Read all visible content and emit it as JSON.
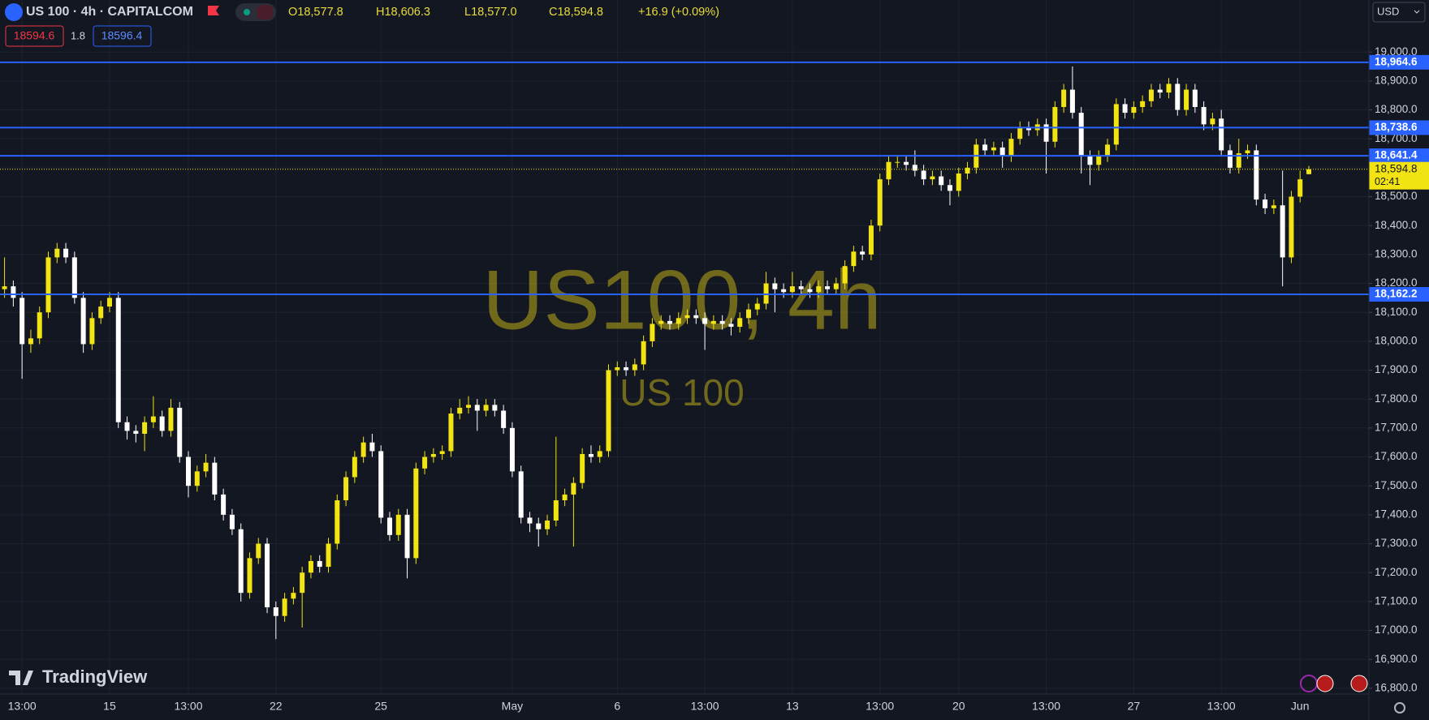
{
  "chart_data": {
    "type": "candlestick",
    "title": "US 100 · 4h · CAPITALCOM",
    "ohlc_legend": [
      "O18,577.8",
      "H18,606.3",
      "L18,577.0",
      "C18,594.8",
      "+16.9 (+0.09%)"
    ],
    "sell_price": 18594.6,
    "spread": 1.8,
    "buy_price": 18596.4,
    "watermark": "US100, 4h",
    "watermark_subtitle": "US 100",
    "brand": "TradingView",
    "currency": "USD",
    "up_color": "#f2e313",
    "down_color": "#ffffff",
    "grid": true,
    "categories": [
      null,
      null,
      "13:00",
      null,
      null,
      null,
      null,
      null,
      null,
      null,
      null,
      null,
      "15",
      null,
      null,
      null,
      null,
      null,
      null,
      null,
      null,
      "13:00",
      null,
      null,
      null,
      null,
      null,
      null,
      null,
      null,
      null,
      "22",
      null,
      null,
      null,
      null,
      null,
      null,
      null,
      null,
      null,
      null,
      null,
      "25",
      null,
      null,
      null,
      null,
      null,
      null,
      null,
      null,
      null,
      null,
      null,
      null,
      null,
      null,
      "May",
      null,
      null,
      null,
      null,
      null,
      null,
      null,
      null,
      null,
      null,
      null,
      "6",
      null,
      null,
      null,
      null,
      null,
      null,
      null,
      null,
      null,
      "13:00",
      null,
      null,
      null,
      null,
      null,
      null,
      null,
      null,
      null,
      "13",
      null,
      null,
      null,
      null,
      null,
      null,
      null,
      null,
      null,
      "13:00",
      null,
      null,
      null,
      null,
      null,
      null,
      null,
      null,
      "20",
      null,
      null,
      null,
      null,
      null,
      null,
      null,
      null,
      null,
      "13:00",
      null,
      null,
      null,
      null,
      null,
      null,
      null,
      null,
      null,
      "27",
      null,
      null,
      null,
      null,
      null,
      null,
      null,
      null,
      null,
      "13:00",
      null,
      null,
      null,
      null,
      null,
      null,
      null,
      null,
      "Jun",
      null
    ],
    "open": [
      18180,
      18190,
      18150,
      17990,
      18010,
      18100,
      18290,
      18320,
      18290,
      18150,
      17990,
      18080,
      18120,
      18150,
      17720,
      17690,
      17680,
      17720,
      17740,
      17690,
      17770,
      17600,
      17500,
      17550,
      17580,
      17470,
      17400,
      17350,
      17130,
      17250,
      17300,
      17080,
      17050,
      17110,
      17130,
      17200,
      17240,
      17220,
      17300,
      17450,
      17530,
      17600,
      17650,
      17620,
      17390,
      17330,
      17400,
      17250,
      17560,
      17600,
      17610,
      17620,
      17750,
      17770,
      17780,
      17760,
      17780,
      17760,
      17700,
      17550,
      17390,
      17370,
      17350,
      17380,
      17450,
      17470,
      17510,
      17610,
      17600,
      17620,
      17900,
      17910,
      17900,
      17920,
      18000,
      18060,
      18070,
      18060,
      18080,
      18090,
      18080,
      18060,
      18070,
      18060,
      18050,
      18080,
      18110,
      18130,
      18200,
      18180,
      18170,
      18190,
      18180,
      18170,
      18190,
      18180,
      18200,
      18260,
      18310,
      18300,
      18400,
      18560,
      18620,
      18620,
      18610,
      18590,
      18560,
      18570,
      18540,
      18520,
      18580,
      18600,
      18680,
      18660,
      18670,
      18640,
      18700,
      18740,
      18730,
      18750,
      18690,
      18810,
      18870,
      18790,
      18640,
      18610,
      18640,
      18680,
      18820,
      18790,
      18810,
      18830,
      18870,
      18860,
      18890,
      18800,
      18870,
      18810,
      18750,
      18770,
      18660,
      18600,
      18650,
      18660,
      18490,
      18460,
      18470,
      18290,
      18500,
      18577.8
    ],
    "high": [
      18290,
      18210,
      18170,
      18040,
      18120,
      18310,
      18340,
      18340,
      18310,
      18170,
      18100,
      18140,
      18170,
      18170,
      17740,
      17710,
      17740,
      17810,
      17760,
      17800,
      17790,
      17620,
      17570,
      17610,
      17600,
      17490,
      17420,
      17370,
      17270,
      17320,
      17320,
      17100,
      17130,
      17150,
      17220,
      17260,
      17260,
      17320,
      17470,
      17550,
      17620,
      17670,
      17680,
      17640,
      17410,
      17420,
      17420,
      17580,
      17620,
      17630,
      17640,
      17770,
      17800,
      17810,
      17800,
      17800,
      17800,
      17780,
      17720,
      17570,
      17410,
      17390,
      17400,
      17670,
      17490,
      17530,
      17630,
      17640,
      17640,
      17920,
      17930,
      17930,
      17940,
      18020,
      18080,
      18090,
      18090,
      18100,
      18110,
      18110,
      18100,
      18090,
      18090,
      18080,
      18100,
      18130,
      18150,
      18240,
      18220,
      18200,
      18240,
      18210,
      18200,
      18210,
      18210,
      18220,
      18280,
      18330,
      18330,
      18420,
      18580,
      18640,
      18640,
      18640,
      18660,
      18610,
      18590,
      18590,
      18560,
      18600,
      18620,
      18700,
      18700,
      18690,
      18690,
      18720,
      18760,
      18760,
      18770,
      18770,
      18830,
      18890,
      18950,
      18810,
      18660,
      18660,
      18700,
      18840,
      18840,
      18830,
      18850,
      18890,
      18890,
      18910,
      18910,
      18890,
      18890,
      18830,
      18790,
      18800,
      18680,
      18700,
      18680,
      18680,
      18510,
      18490,
      18590,
      18520,
      18590,
      18606.3
    ],
    "low": [
      18150,
      18120,
      17870,
      17960,
      17990,
      18080,
      18270,
      18270,
      18130,
      17960,
      17970,
      18060,
      18100,
      17700,
      17660,
      17650,
      17620,
      17700,
      17670,
      17670,
      17580,
      17460,
      17480,
      17530,
      17450,
      17380,
      17330,
      17100,
      17110,
      17230,
      17060,
      16970,
      17030,
      17090,
      17010,
      17180,
      17200,
      17200,
      17280,
      17430,
      17510,
      17580,
      17600,
      17370,
      17310,
      17310,
      17180,
      17230,
      17540,
      17580,
      17590,
      17600,
      17730,
      17750,
      17690,
      17740,
      17740,
      17680,
      17530,
      17370,
      17340,
      17290,
      17330,
      17360,
      17430,
      17290,
      17490,
      17580,
      17580,
      17600,
      17880,
      17880,
      17880,
      17900,
      17980,
      18040,
      18040,
      18040,
      18060,
      18060,
      17970,
      18040,
      18040,
      18020,
      18030,
      18060,
      18090,
      18110,
      18100,
      18150,
      18150,
      18160,
      18150,
      18150,
      18160,
      18160,
      18180,
      18240,
      18280,
      18280,
      18380,
      18540,
      18600,
      18590,
      18570,
      18540,
      18540,
      18520,
      18470,
      18500,
      18560,
      18580,
      18640,
      18640,
      18600,
      18620,
      18680,
      18710,
      18710,
      18580,
      18670,
      18790,
      18770,
      18580,
      18540,
      18590,
      18620,
      18660,
      18770,
      18770,
      18790,
      18810,
      18840,
      18840,
      18780,
      18780,
      18790,
      18730,
      18730,
      18640,
      18580,
      18580,
      18630,
      18470,
      18440,
      18440,
      18190,
      18270,
      18480,
      18577.0
    ],
    "close": [
      18190,
      18150,
      17990,
      18010,
      18100,
      18290,
      18320,
      18290,
      18150,
      17990,
      18080,
      18120,
      18150,
      17720,
      17690,
      17680,
      17720,
      17740,
      17690,
      17770,
      17600,
      17500,
      17550,
      17580,
      17470,
      17400,
      17350,
      17130,
      17250,
      17300,
      17080,
      17050,
      17110,
      17130,
      17200,
      17240,
      17220,
      17300,
      17450,
      17530,
      17600,
      17650,
      17620,
      17390,
      17330,
      17400,
      17250,
      17560,
      17600,
      17610,
      17620,
      17750,
      17770,
      17780,
      17760,
      17780,
      17760,
      17700,
      17550,
      17390,
      17370,
      17350,
      17380,
      17450,
      17470,
      17510,
      17610,
      17600,
      17620,
      17900,
      17910,
      17900,
      17920,
      18000,
      18060,
      18070,
      18060,
      18080,
      18090,
      18080,
      18060,
      18070,
      18060,
      18050,
      18080,
      18110,
      18130,
      18200,
      18180,
      18170,
      18190,
      18180,
      18170,
      18190,
      18180,
      18200,
      18260,
      18310,
      18300,
      18400,
      18560,
      18620,
      18620,
      18610,
      18590,
      18560,
      18570,
      18540,
      18520,
      18580,
      18600,
      18680,
      18660,
      18670,
      18640,
      18700,
      18740,
      18730,
      18750,
      18690,
      18810,
      18870,
      18790,
      18640,
      18610,
      18640,
      18680,
      18820,
      18790,
      18810,
      18830,
      18870,
      18860,
      18890,
      18800,
      18870,
      18810,
      18750,
      18770,
      18660,
      18600,
      18650,
      18660,
      18490,
      18460,
      18470,
      18290,
      18500,
      18560,
      18594.8
    ],
    "ylim": [
      16780,
      19180
    ],
    "yticks": [
      {
        "value": 16800,
        "label": "16,800.0"
      },
      {
        "value": 16900,
        "label": "16,900.0"
      },
      {
        "value": 17000,
        "label": "17,000.0"
      },
      {
        "value": 17100,
        "label": "17,100.0"
      },
      {
        "value": 17200,
        "label": "17,200.0"
      },
      {
        "value": 17300,
        "label": "17,300.0"
      },
      {
        "value": 17400,
        "label": "17,400.0"
      },
      {
        "value": 17500,
        "label": "17,500.0"
      },
      {
        "value": 17600,
        "label": "17,600.0"
      },
      {
        "value": 17700,
        "label": "17,700.0"
      },
      {
        "value": 17800,
        "label": "17,800.0"
      },
      {
        "value": 17900,
        "label": "17,900.0"
      },
      {
        "value": 18000,
        "label": "18,000.0"
      },
      {
        "value": 18100,
        "label": "18,100.0"
      },
      {
        "value": 18200,
        "label": "18,200.0"
      },
      {
        "value": 18300,
        "label": "18,300.0"
      },
      {
        "value": 18400,
        "label": "18,400.0"
      },
      {
        "value": 18500,
        "label": "18,500.0"
      },
      {
        "value": 18600,
        "label": "18,600.0"
      },
      {
        "value": 18700,
        "label": "18,700.0"
      },
      {
        "value": 18800,
        "label": "18,800.0"
      },
      {
        "value": 18900,
        "label": "18,900.0"
      },
      {
        "value": 19000,
        "label": "19,000.0"
      }
    ],
    "hlines": {
      "color": "#2962ff",
      "levels": [
        {
          "value": 18964.6,
          "label": "18,964.6"
        },
        {
          "value": 18738.6,
          "label": "18,738.6"
        },
        {
          "value": 18641.4,
          "label": "18,641.4"
        },
        {
          "value": 18162.2,
          "label": "18,162.2"
        }
      ]
    },
    "last_price": {
      "value": 18594.8,
      "label": "18,594.8"
    },
    "countdown": "02:41"
  }
}
